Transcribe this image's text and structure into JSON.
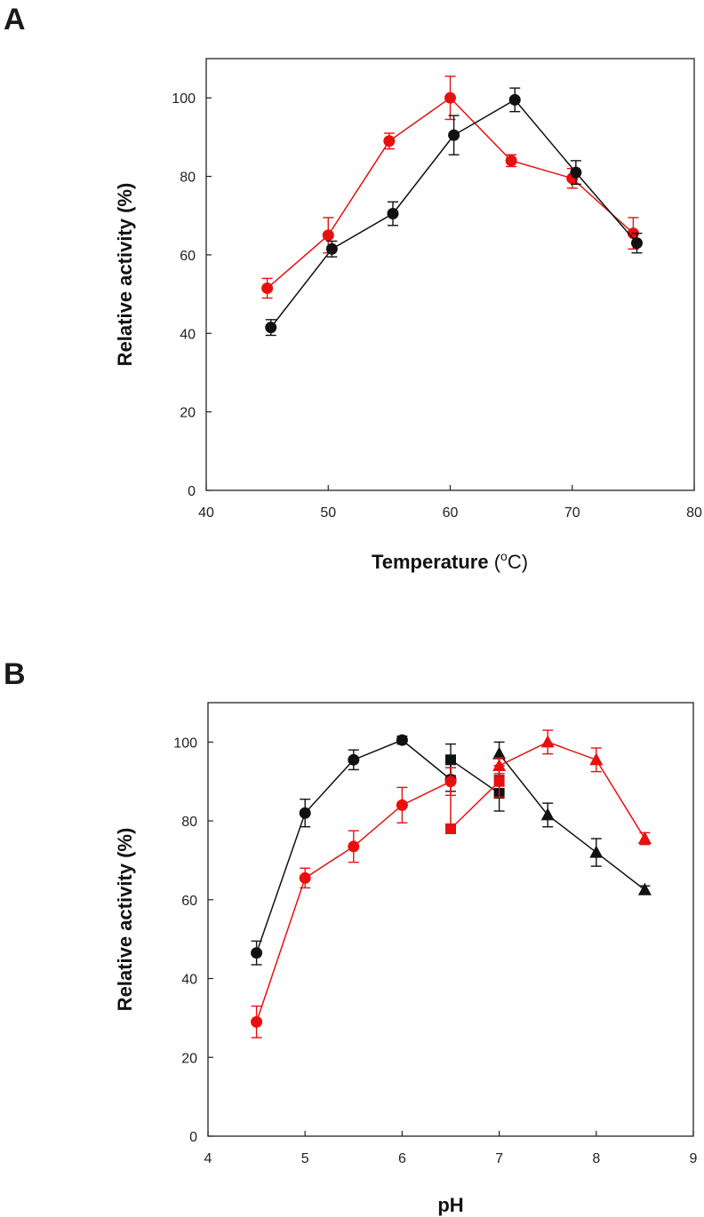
{
  "colors": {
    "red": "#e8100f",
    "black": "#111111"
  },
  "chart_data": [
    {
      "panel_label": "A",
      "type": "line",
      "xlabel": {
        "main": "Temperature",
        "open": " (",
        "sup": "o",
        "unit": "C)"
      },
      "ylabel": "Relative activity (%)",
      "xlim": [
        40,
        80
      ],
      "ylim": [
        0,
        110
      ],
      "xticks": [
        40,
        50,
        60,
        70,
        80
      ],
      "yticks": [
        0,
        20,
        40,
        60,
        80,
        100
      ],
      "grid": false,
      "series": [
        {
          "color": "red",
          "marker": "circle",
          "segments": [
            {
              "points": [
                {
                  "x": 45,
                  "y": 51.5,
                  "err": 2.5
                },
                {
                  "x": 50,
                  "y": 65,
                  "err": 4.5
                },
                {
                  "x": 55,
                  "y": 89,
                  "err": 2
                },
                {
                  "x": 60,
                  "y": 100,
                  "err": 5.5
                },
                {
                  "x": 65,
                  "y": 84,
                  "err": 1.5
                },
                {
                  "x": 70,
                  "y": 79.5,
                  "err": 2.5
                },
                {
                  "x": 75,
                  "y": 65.5,
                  "err": 4
                }
              ]
            }
          ]
        },
        {
          "color": "black",
          "marker": "circle",
          "segments": [
            {
              "points": [
                {
                  "x": 45.3,
                  "y": 41.5,
                  "err": 2
                },
                {
                  "x": 50.3,
                  "y": 61.5,
                  "err": 2
                },
                {
                  "x": 55.3,
                  "y": 70.5,
                  "err": 3
                },
                {
                  "x": 60.3,
                  "y": 90.5,
                  "err": 5
                },
                {
                  "x": 65.3,
                  "y": 99.5,
                  "err": 3
                },
                {
                  "x": 70.3,
                  "y": 81,
                  "err": 3
                },
                {
                  "x": 75.3,
                  "y": 63,
                  "err": 2.5
                }
              ]
            }
          ]
        }
      ]
    },
    {
      "panel_label": "B",
      "type": "line",
      "xlabel": {
        "main": "pH"
      },
      "ylabel": "Relative activity (%)",
      "xlim": [
        4,
        9
      ],
      "ylim": [
        0,
        110
      ],
      "xticks": [
        4,
        5,
        6,
        7,
        8,
        9
      ],
      "yticks": [
        0,
        20,
        40,
        60,
        80,
        100
      ],
      "grid": false,
      "series": [
        {
          "color": "black",
          "segments": [
            {
              "marker": "circle",
              "points": [
                {
                  "x": 4.5,
                  "y": 46.5,
                  "err": 3
                },
                {
                  "x": 5.0,
                  "y": 82,
                  "err": 3.5
                },
                {
                  "x": 5.5,
                  "y": 95.5,
                  "err": 2.5
                },
                {
                  "x": 6.0,
                  "y": 100.5,
                  "err": 1
                },
                {
                  "x": 6.5,
                  "y": 90.5,
                  "err": 3
                }
              ]
            },
            {
              "marker": "square",
              "points": [
                {
                  "x": 6.5,
                  "y": 95.5,
                  "err": 4
                },
                {
                  "x": 7.0,
                  "y": 87,
                  "err": 4.5
                }
              ]
            },
            {
              "marker": "triangle",
              "points": [
                {
                  "x": 7.0,
                  "y": 97,
                  "err": 3
                },
                {
                  "x": 7.5,
                  "y": 81.5,
                  "err": 3
                },
                {
                  "x": 8.0,
                  "y": 72,
                  "err": 3.5
                },
                {
                  "x": 8.5,
                  "y": 62.5,
                  "err": 1
                }
              ]
            }
          ]
        },
        {
          "color": "red",
          "segments": [
            {
              "marker": "circle",
              "points": [
                {
                  "x": 4.5,
                  "y": 29,
                  "err": 4
                },
                {
                  "x": 5.0,
                  "y": 65.5,
                  "err": 2.5
                },
                {
                  "x": 5.5,
                  "y": 73.5,
                  "err": 4
                },
                {
                  "x": 6.0,
                  "y": 84,
                  "err": 4.5
                },
                {
                  "x": 6.5,
                  "y": 90,
                  "err": 3.5
                }
              ]
            },
            {
              "marker": "square",
              "points": [
                {
                  "x": 6.5,
                  "y": 78,
                  "err": 1
                },
                {
                  "x": 7.0,
                  "y": 90,
                  "err": 4
                }
              ]
            },
            {
              "marker": "triangle",
              "points": [
                {
                  "x": 7.0,
                  "y": 94,
                  "err": 2
                },
                {
                  "x": 7.5,
                  "y": 100,
                  "err": 3
                },
                {
                  "x": 8.0,
                  "y": 95.5,
                  "err": 3
                },
                {
                  "x": 8.5,
                  "y": 75.5,
                  "err": 1.5
                }
              ]
            }
          ]
        }
      ]
    }
  ]
}
